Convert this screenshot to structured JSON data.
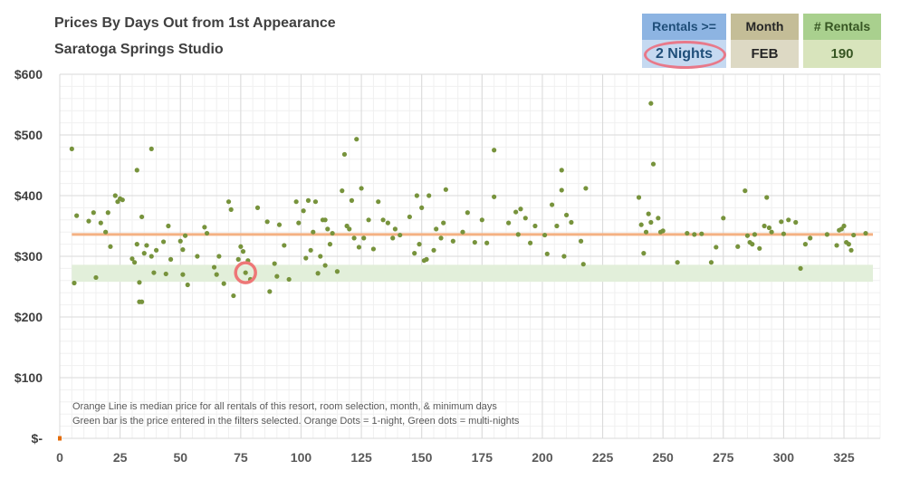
{
  "titles": {
    "line1": "Prices By Days Out from 1st Appearance",
    "line2": "Saratoga Springs Studio"
  },
  "filters": {
    "rentals_header": "Rentals >=",
    "rentals_value": "2 Nights",
    "month_header": "Month",
    "month_value": "FEB",
    "count_header": "# Rentals",
    "count_value": "190"
  },
  "notes": {
    "line1": "Orange Line is median price for all rentals of this resort, room selection, month, & minimum days",
    "line2": "Green bar is the price entered in the filters selected. Orange Dots = 1-night, Green dots = multi-nights"
  },
  "colors": {
    "median_line": "#f4b183",
    "green_band": "#e2efda",
    "dots": "#77933c",
    "orange_dot": "#e46c0a",
    "highlight_ring": "#ee7777"
  },
  "chart_data": {
    "type": "scatter",
    "xlim": [
      0,
      340
    ],
    "ylim": [
      0,
      600
    ],
    "x_ticks": [
      0,
      25,
      50,
      75,
      100,
      125,
      150,
      175,
      200,
      225,
      250,
      275,
      300,
      325
    ],
    "y_ticks": [
      0,
      100,
      200,
      300,
      400,
      500,
      600
    ],
    "y_tick_labels": [
      "$-",
      "$100",
      "$200",
      "$300",
      "$400",
      "$500",
      "$600"
    ],
    "grid": true,
    "median": 336,
    "green_band": [
      258,
      286
    ],
    "highlight_point": [
      77,
      273
    ],
    "orange_points": [
      [
        0,
        0
      ]
    ],
    "points": [
      [
        5,
        477
      ],
      [
        6,
        256
      ],
      [
        7,
        367
      ],
      [
        12,
        358
      ],
      [
        14,
        372
      ],
      [
        15,
        265
      ],
      [
        17,
        355
      ],
      [
        19,
        340
      ],
      [
        20,
        372
      ],
      [
        21,
        316
      ],
      [
        23,
        400
      ],
      [
        24,
        390
      ],
      [
        25,
        395
      ],
      [
        26,
        393
      ],
      [
        30,
        296
      ],
      [
        31,
        290
      ],
      [
        32,
        320
      ],
      [
        32,
        442
      ],
      [
        33,
        257
      ],
      [
        33,
        225
      ],
      [
        34,
        225
      ],
      [
        34,
        365
      ],
      [
        35,
        305
      ],
      [
        36,
        318
      ],
      [
        38,
        300
      ],
      [
        38,
        477
      ],
      [
        39,
        273
      ],
      [
        40,
        310
      ],
      [
        43,
        324
      ],
      [
        44,
        271
      ],
      [
        45,
        350
      ],
      [
        46,
        295
      ],
      [
        50,
        325
      ],
      [
        51,
        311
      ],
      [
        51,
        270
      ],
      [
        52,
        334
      ],
      [
        53,
        253
      ],
      [
        57,
        300
      ],
      [
        60,
        348
      ],
      [
        61,
        338
      ],
      [
        64,
        282
      ],
      [
        65,
        270
      ],
      [
        66,
        300
      ],
      [
        68,
        255
      ],
      [
        70,
        390
      ],
      [
        71,
        377
      ],
      [
        72,
        235
      ],
      [
        74,
        295
      ],
      [
        75,
        316
      ],
      [
        76,
        308
      ],
      [
        77,
        273
      ],
      [
        78,
        293
      ],
      [
        79,
        262
      ],
      [
        82,
        380
      ],
      [
        86,
        357
      ],
      [
        87,
        242
      ],
      [
        89,
        288
      ],
      [
        90,
        267
      ],
      [
        91,
        352
      ],
      [
        93,
        318
      ],
      [
        95,
        262
      ],
      [
        98,
        390
      ],
      [
        99,
        355
      ],
      [
        101,
        375
      ],
      [
        102,
        297
      ],
      [
        103,
        392
      ],
      [
        104,
        310
      ],
      [
        105,
        340
      ],
      [
        106,
        390
      ],
      [
        107,
        272
      ],
      [
        108,
        300
      ],
      [
        109,
        360
      ],
      [
        110,
        285
      ],
      [
        110,
        360
      ],
      [
        111,
        345
      ],
      [
        112,
        320
      ],
      [
        113,
        338
      ],
      [
        115,
        275
      ],
      [
        117,
        408
      ],
      [
        118,
        468
      ],
      [
        119,
        350
      ],
      [
        120,
        345
      ],
      [
        121,
        392
      ],
      [
        122,
        330
      ],
      [
        123,
        493
      ],
      [
        124,
        315
      ],
      [
        125,
        412
      ],
      [
        126,
        330
      ],
      [
        128,
        360
      ],
      [
        130,
        312
      ],
      [
        132,
        390
      ],
      [
        134,
        360
      ],
      [
        136,
        355
      ],
      [
        138,
        330
      ],
      [
        139,
        345
      ],
      [
        141,
        335
      ],
      [
        145,
        365
      ],
      [
        147,
        305
      ],
      [
        148,
        400
      ],
      [
        149,
        320
      ],
      [
        150,
        380
      ],
      [
        151,
        293
      ],
      [
        152,
        295
      ],
      [
        153,
        400
      ],
      [
        155,
        310
      ],
      [
        156,
        345
      ],
      [
        158,
        330
      ],
      [
        159,
        355
      ],
      [
        160,
        410
      ],
      [
        163,
        325
      ],
      [
        167,
        340
      ],
      [
        169,
        372
      ],
      [
        172,
        323
      ],
      [
        175,
        360
      ],
      [
        177,
        322
      ],
      [
        180,
        475
      ],
      [
        180,
        398
      ],
      [
        186,
        355
      ],
      [
        189,
        373
      ],
      [
        190,
        336
      ],
      [
        191,
        378
      ],
      [
        193,
        363
      ],
      [
        195,
        322
      ],
      [
        197,
        350
      ],
      [
        201,
        335
      ],
      [
        202,
        304
      ],
      [
        204,
        385
      ],
      [
        206,
        350
      ],
      [
        208,
        409
      ],
      [
        208,
        442
      ],
      [
        209,
        300
      ],
      [
        210,
        368
      ],
      [
        212,
        356
      ],
      [
        216,
        325
      ],
      [
        217,
        287
      ],
      [
        218,
        412
      ],
      [
        240,
        397
      ],
      [
        241,
        352
      ],
      [
        242,
        305
      ],
      [
        243,
        340
      ],
      [
        244,
        370
      ],
      [
        245,
        356
      ],
      [
        245,
        552
      ],
      [
        246,
        452
      ],
      [
        248,
        363
      ],
      [
        249,
        340
      ],
      [
        250,
        342
      ],
      [
        256,
        290
      ],
      [
        260,
        338
      ],
      [
        263,
        336
      ],
      [
        266,
        337
      ],
      [
        270,
        290
      ],
      [
        272,
        315
      ],
      [
        275,
        363
      ],
      [
        281,
        316
      ],
      [
        284,
        408
      ],
      [
        285,
        334
      ],
      [
        286,
        323
      ],
      [
        287,
        320
      ],
      [
        288,
        336
      ],
      [
        290,
        313
      ],
      [
        292,
        350
      ],
      [
        293,
        397
      ],
      [
        294,
        347
      ],
      [
        295,
        340
      ],
      [
        299,
        357
      ],
      [
        300,
        337
      ],
      [
        302,
        360
      ],
      [
        305,
        356
      ],
      [
        307,
        280
      ],
      [
        309,
        320
      ],
      [
        311,
        330
      ],
      [
        318,
        336
      ],
      [
        322,
        318
      ],
      [
        323,
        343
      ],
      [
        324,
        345
      ],
      [
        325,
        350
      ],
      [
        326,
        323
      ],
      [
        327,
        320
      ],
      [
        328,
        310
      ],
      [
        329,
        335
      ],
      [
        334,
        338
      ]
    ]
  }
}
